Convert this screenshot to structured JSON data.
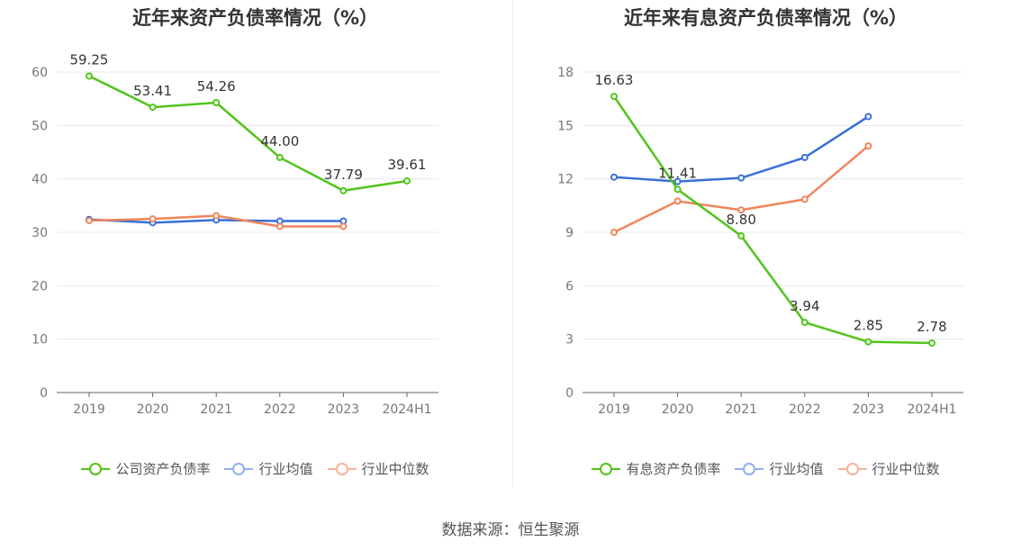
{
  "source_label": "数据来源：恒生聚源",
  "chart_data": [
    {
      "type": "line",
      "title": "近年来资产负债率情况（%）",
      "categories": [
        "2019",
        "2020",
        "2021",
        "2022",
        "2023",
        "2024H1"
      ],
      "ylim": [
        0,
        60
      ],
      "yticks": [
        0,
        10,
        20,
        30,
        40,
        50,
        60
      ],
      "grid": true,
      "legend_position": "bottom",
      "series": [
        {
          "name": "公司资产负债率",
          "color": "#52c41a",
          "values": [
            59.25,
            53.41,
            54.26,
            44.0,
            37.79,
            39.61
          ],
          "labels": [
            "59.25",
            "53.41",
            "54.26",
            "44.00",
            "37.79",
            "39.61"
          ]
        },
        {
          "name": "行业均值",
          "color": "#3a6fd8",
          "values": [
            32.4,
            31.8,
            32.3,
            32.1,
            32.1,
            null
          ]
        },
        {
          "name": "行业中位数",
          "color": "#f0855a",
          "values": [
            32.2,
            32.5,
            33.1,
            31.1,
            31.1,
            null
          ]
        }
      ]
    },
    {
      "type": "line",
      "title": "近年来有息资产负债率情况（%）",
      "categories": [
        "2019",
        "2020",
        "2021",
        "2022",
        "2023",
        "2024H1"
      ],
      "ylim": [
        0,
        18
      ],
      "yticks": [
        0,
        3,
        6,
        9,
        12,
        15,
        18
      ],
      "grid": true,
      "legend_position": "bottom",
      "series": [
        {
          "name": "有息资产负债率",
          "color": "#52c41a",
          "values": [
            16.63,
            11.41,
            8.8,
            3.94,
            2.85,
            2.78
          ],
          "labels": [
            "16.63",
            "11.41",
            "8.80",
            "3.94",
            "2.85",
            "2.78"
          ]
        },
        {
          "name": "行业均值",
          "color": "#3a6fd8",
          "values": [
            12.1,
            11.85,
            12.05,
            13.2,
            15.5,
            null
          ]
        },
        {
          "name": "行业中位数",
          "color": "#f0855a",
          "values": [
            9.0,
            10.75,
            10.25,
            10.85,
            13.85,
            null
          ]
        }
      ]
    }
  ]
}
